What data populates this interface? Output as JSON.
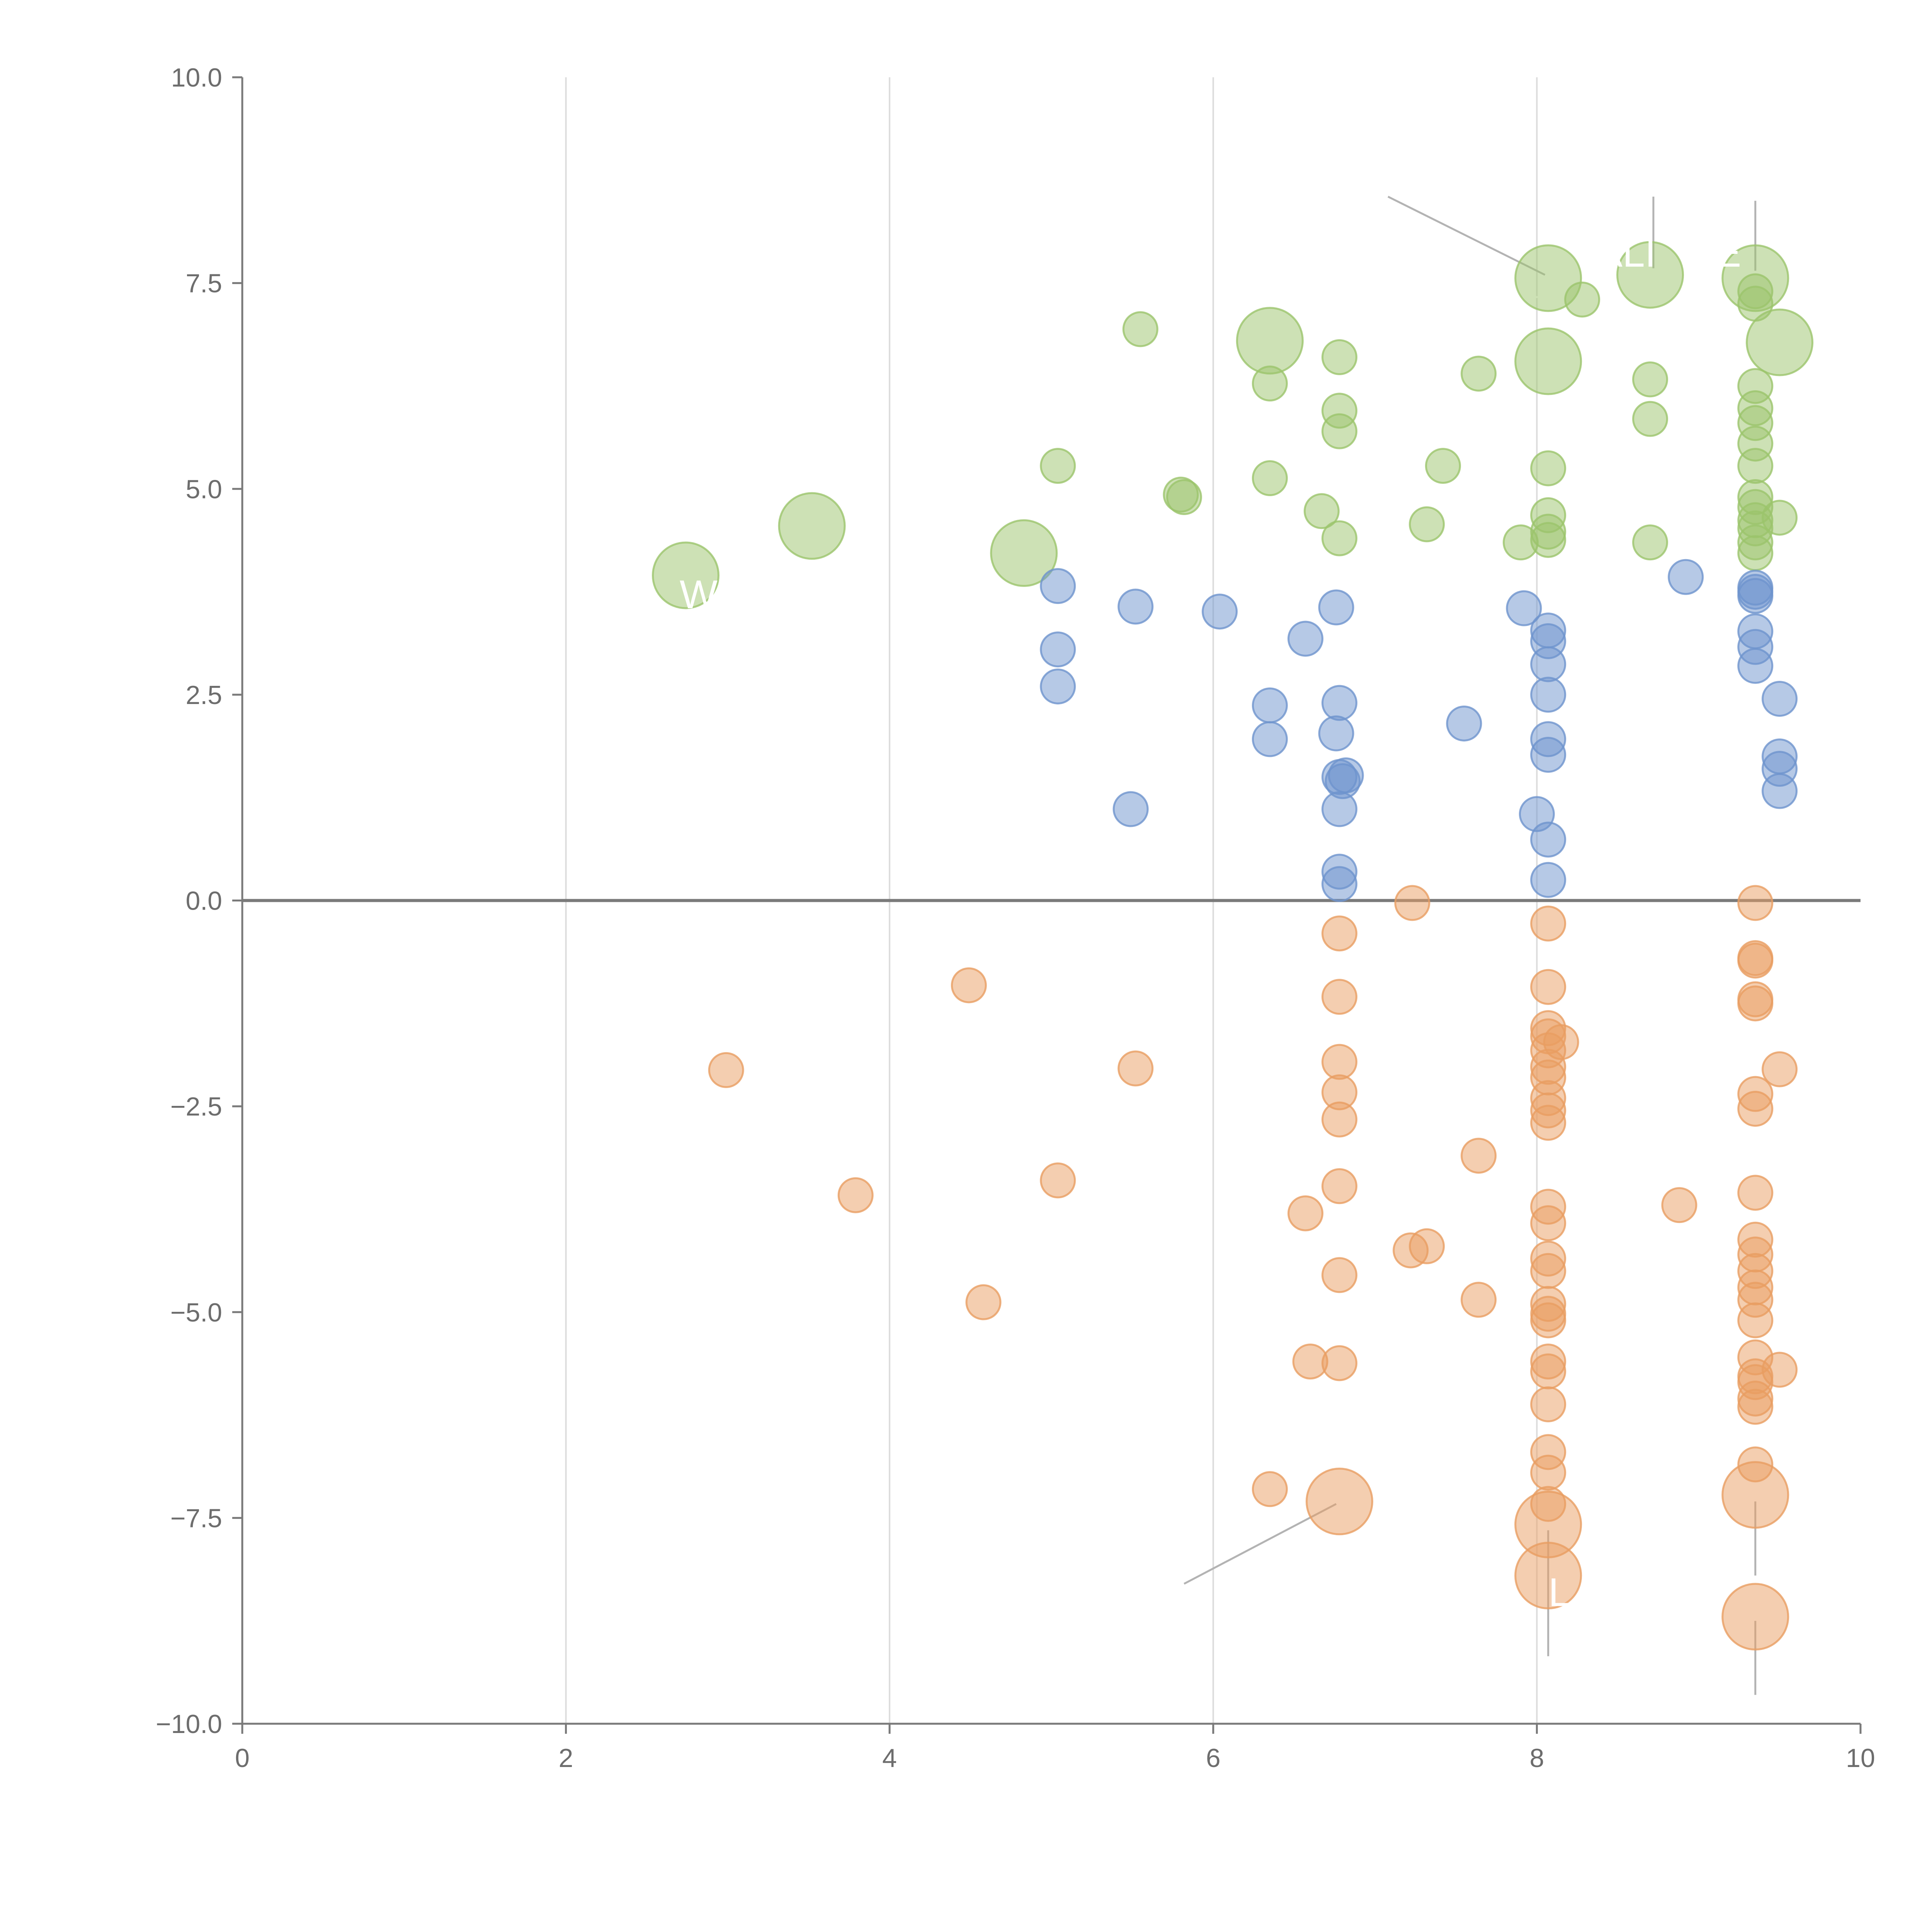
{
  "chart_data": {
    "type": "scatter",
    "title": "",
    "xlabel": "",
    "ylabel": "",
    "xlim": [
      0,
      10
    ],
    "ylim": [
      -10,
      10
    ],
    "x_ticks": [
      0,
      2,
      4,
      6,
      8,
      10
    ],
    "y_ticks": [
      -10,
      -7.5,
      -5,
      -2.5,
      0,
      2.5,
      5,
      7.5,
      10
    ],
    "x_tick_labels": [
      "0",
      "2",
      "4",
      "6",
      "8",
      "10"
    ],
    "y_tick_labels": [
      "−10.0",
      "−7.5",
      "−5.0",
      "−2.5",
      "0.0",
      "2.5",
      "5.0",
      "7.5",
      "10.0"
    ],
    "vertical_gridlines": [
      2,
      4,
      6,
      8
    ],
    "zero_line": 0,
    "series": [
      {
        "name": "green",
        "color": "#9bc46b",
        "points": [
          [
            2.74,
            3.95,
            3
          ],
          [
            3.52,
            4.55,
            3
          ],
          [
            4.83,
            4.22,
            3
          ],
          [
            6.35,
            6.8,
            3
          ],
          [
            8.07,
            7.56,
            3
          ],
          [
            8.07,
            6.55,
            3
          ],
          [
            8.7,
            7.6,
            3
          ],
          [
            9.35,
            7.56,
            3
          ],
          [
            9.5,
            6.78,
            3
          ],
          [
            5.55,
            6.94,
            1
          ],
          [
            5.04,
            5.28,
            1
          ],
          [
            5.8,
            4.93,
            1
          ],
          [
            5.82,
            4.9,
            1
          ],
          [
            6.35,
            6.28,
            1
          ],
          [
            6.35,
            5.13,
            1
          ],
          [
            6.67,
            4.73,
            1
          ],
          [
            6.78,
            6.6,
            1
          ],
          [
            6.78,
            5.95,
            1
          ],
          [
            6.78,
            5.7,
            1
          ],
          [
            6.78,
            4.4,
            1
          ],
          [
            7.32,
            4.57,
            1
          ],
          [
            7.42,
            5.28,
            1
          ],
          [
            7.64,
            6.4,
            1
          ],
          [
            7.9,
            4.35,
            1
          ],
          [
            8.07,
            5.25,
            1
          ],
          [
            8.07,
            4.68,
            1
          ],
          [
            8.07,
            4.48,
            1
          ],
          [
            8.07,
            4.38,
            1
          ],
          [
            8.28,
            7.3,
            1
          ],
          [
            8.7,
            6.33,
            1
          ],
          [
            8.7,
            5.85,
            1
          ],
          [
            8.7,
            4.35,
            1
          ],
          [
            9.35,
            7.4,
            1
          ],
          [
            9.35,
            7.25,
            1
          ],
          [
            9.35,
            6.25,
            1
          ],
          [
            9.35,
            5.98,
            1
          ],
          [
            9.35,
            5.8,
            1
          ],
          [
            9.35,
            5.55,
            1
          ],
          [
            9.35,
            5.28,
            1
          ],
          [
            9.35,
            4.9,
            1
          ],
          [
            9.35,
            4.78,
            1
          ],
          [
            9.35,
            4.62,
            1
          ],
          [
            9.35,
            4.52,
            1
          ],
          [
            9.35,
            4.35,
            1
          ],
          [
            9.35,
            4.22,
            1
          ],
          [
            9.5,
            4.65,
            1
          ]
        ]
      },
      {
        "name": "blue",
        "color": "#6e94cd",
        "points": [
          [
            5.04,
            3.82,
            1
          ],
          [
            5.04,
            3.05,
            1
          ],
          [
            5.04,
            2.6,
            1
          ],
          [
            5.52,
            3.57,
            1
          ],
          [
            5.49,
            1.11,
            1
          ],
          [
            6.04,
            3.51,
            1
          ],
          [
            6.35,
            2.37,
            1
          ],
          [
            6.35,
            1.96,
            1
          ],
          [
            6.57,
            3.18,
            1
          ],
          [
            6.76,
            3.56,
            1
          ],
          [
            6.76,
            2.03,
            1
          ],
          [
            6.78,
            2.4,
            1
          ],
          [
            6.78,
            1.5,
            1
          ],
          [
            6.8,
            1.45,
            1
          ],
          [
            6.78,
            1.11,
            1
          ],
          [
            6.78,
            0.35,
            1
          ],
          [
            6.78,
            0.2,
            1
          ],
          [
            6.82,
            1.52,
            1
          ],
          [
            7.55,
            2.15,
            1
          ],
          [
            7.92,
            3.55,
            1
          ],
          [
            8.0,
            1.05,
            1
          ],
          [
            8.07,
            3.28,
            1
          ],
          [
            8.07,
            3.15,
            1
          ],
          [
            8.07,
            2.87,
            1
          ],
          [
            8.07,
            2.5,
            1
          ],
          [
            8.07,
            1.96,
            1
          ],
          [
            8.07,
            1.77,
            1
          ],
          [
            8.07,
            0.74,
            1
          ],
          [
            8.07,
            0.25,
            1
          ],
          [
            8.92,
            3.93,
            1
          ],
          [
            9.35,
            3.8,
            1
          ],
          [
            9.35,
            3.75,
            1
          ],
          [
            9.35,
            3.7,
            1
          ],
          [
            9.35,
            3.27,
            1
          ],
          [
            9.35,
            3.08,
            1
          ],
          [
            9.35,
            2.85,
            1
          ],
          [
            9.5,
            2.45,
            1
          ],
          [
            9.5,
            1.75,
            1
          ],
          [
            9.5,
            1.6,
            1
          ],
          [
            9.5,
            1.33,
            1
          ]
        ]
      },
      {
        "name": "orange",
        "color": "#e99e62",
        "points": [
          [
            2.99,
            -2.06,
            1
          ],
          [
            3.79,
            -3.58,
            1
          ],
          [
            4.49,
            -1.03,
            1
          ],
          [
            4.58,
            -4.88,
            1
          ],
          [
            5.04,
            -3.4,
            1
          ],
          [
            5.52,
            -2.04,
            1
          ],
          [
            6.35,
            -7.15,
            1
          ],
          [
            6.57,
            -3.8,
            1
          ],
          [
            6.6,
            -5.6,
            1
          ],
          [
            6.78,
            -0.4,
            1
          ],
          [
            6.78,
            -1.17,
            1
          ],
          [
            6.78,
            -1.96,
            1
          ],
          [
            6.78,
            -2.33,
            1
          ],
          [
            6.78,
            -2.66,
            1
          ],
          [
            6.78,
            -3.47,
            1
          ],
          [
            6.78,
            -4.55,
            1
          ],
          [
            6.78,
            -5.62,
            1
          ],
          [
            6.78,
            -7.3,
            3
          ],
          [
            7.23,
            -0.03,
            1
          ],
          [
            7.22,
            -4.25,
            1
          ],
          [
            7.32,
            -4.2,
            1
          ],
          [
            7.64,
            -3.1,
            1
          ],
          [
            7.64,
            -4.85,
            1
          ],
          [
            8.07,
            -0.28,
            1
          ],
          [
            8.07,
            -1.05,
            1
          ],
          [
            8.07,
            -1.55,
            1
          ],
          [
            8.07,
            -1.65,
            1
          ],
          [
            8.07,
            -1.82,
            1
          ],
          [
            8.07,
            -2.02,
            1
          ],
          [
            8.07,
            -2.15,
            1
          ],
          [
            8.07,
            -2.4,
            1
          ],
          [
            8.07,
            -2.55,
            1
          ],
          [
            8.07,
            -2.7,
            1
          ],
          [
            8.15,
            -1.72,
            1
          ],
          [
            8.07,
            -3.72,
            1
          ],
          [
            8.07,
            -3.92,
            1
          ],
          [
            8.07,
            -4.35,
            1
          ],
          [
            8.07,
            -4.5,
            1
          ],
          [
            8.07,
            -4.9,
            1
          ],
          [
            8.07,
            -5.02,
            1
          ],
          [
            8.07,
            -5.1,
            1
          ],
          [
            8.07,
            -5.6,
            1
          ],
          [
            8.07,
            -5.72,
            1
          ],
          [
            8.07,
            -6.12,
            1
          ],
          [
            8.07,
            -6.7,
            1
          ],
          [
            8.07,
            -6.95,
            1
          ],
          [
            8.07,
            -7.33,
            1
          ],
          [
            8.07,
            -7.58,
            3
          ],
          [
            8.07,
            -8.2,
            3
          ],
          [
            8.88,
            -3.7,
            1
          ],
          [
            9.35,
            -0.03,
            1
          ],
          [
            9.35,
            -0.7,
            1
          ],
          [
            9.35,
            -0.73,
            1
          ],
          [
            9.35,
            -1.2,
            1
          ],
          [
            9.35,
            -1.25,
            1
          ],
          [
            9.35,
            -2.35,
            1
          ],
          [
            9.35,
            -2.53,
            1
          ],
          [
            9.35,
            -3.55,
            1
          ],
          [
            9.35,
            -4.12,
            1
          ],
          [
            9.35,
            -4.3,
            1
          ],
          [
            9.35,
            -4.5,
            1
          ],
          [
            9.35,
            -4.7,
            1
          ],
          [
            9.35,
            -4.85,
            1
          ],
          [
            9.35,
            -5.1,
            1
          ],
          [
            9.35,
            -5.55,
            1
          ],
          [
            9.35,
            -5.78,
            1
          ],
          [
            9.35,
            -5.85,
            1
          ],
          [
            9.35,
            -6.05,
            1
          ],
          [
            9.35,
            -6.15,
            1
          ],
          [
            9.35,
            -6.85,
            1
          ],
          [
            9.35,
            -7.22,
            3
          ],
          [
            9.35,
            -8.7,
            3
          ],
          [
            9.5,
            -2.05,
            1
          ],
          [
            9.5,
            -5.7,
            1
          ]
        ]
      }
    ],
    "annotations": [
      {
        "text": "ALI",
        "x": 8.55,
        "y": 7.7
      },
      {
        "text": "E",
        "x": 9.18,
        "y": 7.7
      },
      {
        "text": "L",
        "x": 8.14,
        "y": -8.57
      },
      {
        "text": "W",
        "x": 2.82,
        "y": 3.55
      }
    ],
    "leader_lines": [
      {
        "from": [
          7.08,
          8.55
        ],
        "to": [
          8.05,
          7.6
        ],
        "color": "#b3b3b3"
      },
      {
        "from": [
          8.72,
          8.55
        ],
        "to": [
          8.72,
          7.68
        ],
        "color": "#b3b3b3"
      },
      {
        "from": [
          9.35,
          8.5
        ],
        "to": [
          9.35,
          7.65
        ],
        "color": "#b3b3b3"
      },
      {
        "from": [
          5.82,
          -8.3
        ],
        "to": [
          6.76,
          -7.33
        ],
        "color": "#b3b3b3"
      },
      {
        "from": [
          8.07,
          -7.65
        ],
        "to": [
          8.07,
          -9.18
        ],
        "color": "#b3b3b3"
      },
      {
        "from": [
          9.35,
          -7.3
        ],
        "to": [
          9.35,
          -8.2
        ],
        "color": "#b3b3b3"
      },
      {
        "from": [
          9.35,
          -8.75
        ],
        "to": [
          9.35,
          -9.65
        ],
        "color": "#b3b3b3"
      },
      {
        "from": [
          3.55,
          4.6
        ],
        "to": [
          3.72,
          4.82
        ],
        "color": "#ffffff"
      },
      {
        "from": [
          4.83,
          4.22
        ],
        "to": [
          5.0,
          4.3
        ],
        "color": "#ffffff"
      },
      {
        "from": [
          2.79,
          3.95
        ],
        "to": [
          2.87,
          3.9
        ],
        "color": "#ffffff"
      },
      {
        "from": [
          9.4,
          7.0
        ],
        "to": [
          9.5,
          6.8
        ],
        "color": "#ffffff"
      },
      {
        "from": [
          7.98,
          7.33
        ],
        "to": [
          8.05,
          7.33
        ],
        "color": "#ffffff"
      }
    ]
  }
}
